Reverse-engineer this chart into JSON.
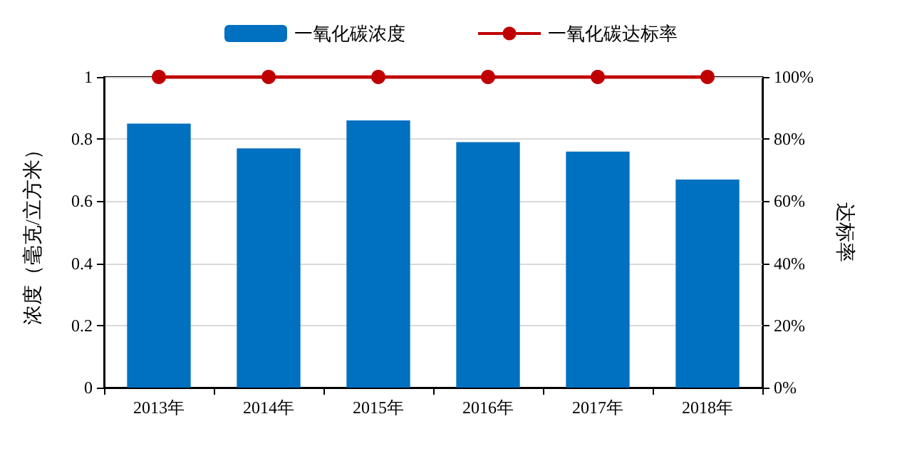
{
  "chart_data": {
    "type": "bar",
    "categories": [
      "2013年",
      "2014年",
      "2015年",
      "2016年",
      "2017年",
      "2018年"
    ],
    "ylabel": "浓度（毫克/立方米）",
    "y2label": "达标率",
    "series": [
      {
        "name": "一氧化碳浓度",
        "color": "#0070c0",
        "values": [
          0.85,
          0.77,
          0.86,
          0.79,
          0.76,
          0.67
        ]
      },
      {
        "name": "一氧化碳达标率",
        "type": "line",
        "axis": "y2",
        "color": "#c00000",
        "values": [
          100,
          100,
          100,
          100,
          100,
          100
        ]
      }
    ],
    "ylim": [
      0,
      1
    ],
    "yticks": [
      0,
      0.2,
      0.4,
      0.6,
      0.8,
      1
    ],
    "y2lim": [
      0,
      100
    ],
    "y2ticks": [
      {
        "value": 0,
        "label": "0%"
      },
      {
        "value": 20,
        "label": "20%"
      },
      {
        "value": 40,
        "label": "40%"
      },
      {
        "value": 60,
        "label": "60%"
      },
      {
        "value": 80,
        "label": "80%"
      },
      {
        "value": 100,
        "label": "100%"
      }
    ],
    "grid": "y",
    "legend": "top",
    "marker": "circle"
  }
}
